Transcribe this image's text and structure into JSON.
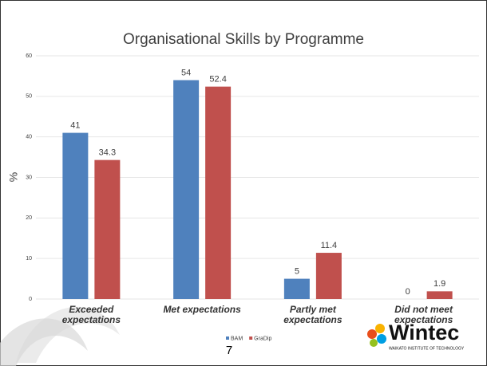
{
  "chart_data": {
    "type": "bar",
    "title": "Organisational Skills by Programme",
    "y_label": "%",
    "categories": [
      "Exceeded expectations",
      "Met expectations",
      "Partly met expectations",
      "Did not meet expectations"
    ],
    "series": [
      {
        "name": "BAM",
        "color": "#4f81bd",
        "values": [
          41,
          54,
          5,
          0
        ]
      },
      {
        "name": "GraDip",
        "color": "#c0504d",
        "values": [
          34.3,
          52.4,
          11.4,
          1.9
        ]
      }
    ],
    "ylim": [
      0,
      60
    ],
    "yticks": [
      0,
      10,
      20,
      30,
      40,
      50,
      60
    ],
    "grid": true,
    "legend": "bottom"
  },
  "page_number": "7",
  "logo": {
    "name": "Wintec",
    "tagline": "WAIKATO INSTITUTE OF TECHNOLOGY"
  }
}
